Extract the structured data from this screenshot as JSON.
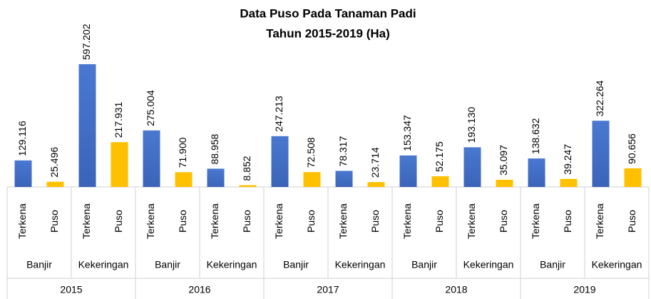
{
  "chart_data": {
    "type": "bar",
    "title": [
      "Data Puso Pada Tanaman Padi",
      "Tahun 2015-2019 (Ha)"
    ],
    "years": [
      "2015",
      "2016",
      "2017",
      "2018",
      "2019"
    ],
    "causes": [
      "Banjir",
      "Kekeringan"
    ],
    "series": [
      {
        "name": "Terkena",
        "color": "#4472c4",
        "values": [
          129116,
          597202,
          275004,
          88958,
          247213,
          78317,
          153347,
          193130,
          138632,
          322264
        ],
        "value_labels": [
          "129.116",
          "597.202",
          "275.004",
          "88.958",
          "247.213",
          "78.317",
          "153.347",
          "193.130",
          "138.632",
          "322.264"
        ]
      },
      {
        "name": "Puso",
        "color": "#ffc000",
        "values": [
          25496,
          217931,
          71900,
          8852,
          72508,
          23714,
          52175,
          35097,
          39247,
          90656
        ],
        "value_labels": [
          "25.496",
          "217.931",
          "71.900",
          "8.852",
          "72.508",
          "23.714",
          "52.175",
          "35.097",
          "39.247",
          "90.656"
        ]
      }
    ]
  }
}
